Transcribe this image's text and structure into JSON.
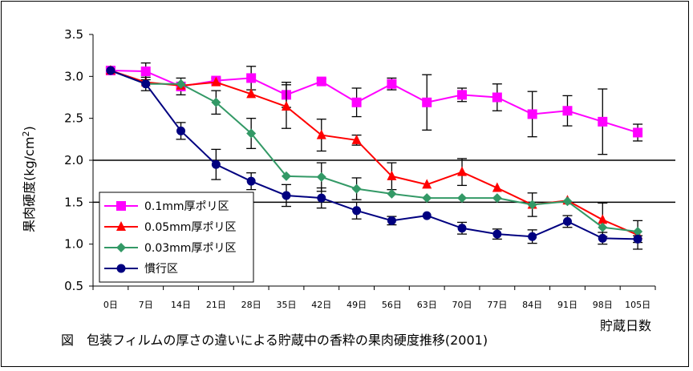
{
  "chart_data": {
    "type": "line",
    "title": "",
    "caption": "図　包装フィルムの厚さの違いによる貯蔵中の香粋の果肉硬度推移(2001)",
    "xlabel": "貯蔵日数",
    "ylabel": "果肉硬度(kg/cm²)",
    "ylabel_parts": {
      "main": "果肉硬度(kg/cm",
      "sup": "2",
      "close": ")"
    },
    "ylim": [
      0.5,
      3.5
    ],
    "yticks": [
      "0.5",
      "1.0",
      "1.5",
      "2.0",
      "2.5",
      "3.0",
      "3.5"
    ],
    "categories": [
      "0日",
      "7日",
      "14日",
      "21日",
      "28日",
      "35日",
      "42日",
      "49日",
      "56日",
      "63日",
      "70日",
      "77日",
      "84日",
      "91日",
      "98日",
      "105日"
    ],
    "reference_lines": [
      2.0,
      1.5
    ],
    "grid": false,
    "legend_position": "lower-left",
    "series": [
      {
        "name": "0.1mm厚ポリ区",
        "color": "#ff00ff",
        "marker": "square",
        "values": [
          3.07,
          3.06,
          2.88,
          2.95,
          2.98,
          2.78,
          2.94,
          2.69,
          2.91,
          2.69,
          2.78,
          2.75,
          2.55,
          2.59,
          2.46,
          2.33
        ],
        "errors": [
          0.03,
          0.1,
          0.1,
          0.03,
          0.14,
          0.15,
          0.03,
          0.17,
          0.07,
          0.33,
          0.08,
          0.16,
          0.27,
          0.18,
          0.39,
          0.1
        ]
      },
      {
        "name": "0.05mm厚ポリ区",
        "color": "#ff0000",
        "marker": "triangle",
        "values": [
          3.07,
          2.93,
          2.89,
          2.93,
          2.79,
          2.64,
          2.3,
          2.24,
          1.81,
          1.71,
          1.86,
          1.67,
          1.47,
          1.52,
          1.29,
          1.11
        ],
        "errors": [
          0.0,
          0.0,
          0.0,
          0.0,
          0.0,
          0.26,
          0.19,
          0.06,
          0.16,
          0.0,
          0.16,
          0.0,
          0.0,
          0.0,
          0.2,
          0.17
        ]
      },
      {
        "name": "0.03mm厚ポリ区",
        "color": "#339966",
        "marker": "diamond",
        "values": [
          3.07,
          2.91,
          2.91,
          2.69,
          2.32,
          1.81,
          1.8,
          1.66,
          1.6,
          1.55,
          1.55,
          1.55,
          1.47,
          1.51,
          1.2,
          1.15
        ],
        "errors": [
          0.0,
          0.0,
          0.0,
          0.14,
          0.18,
          0.0,
          0.17,
          0.13,
          0.0,
          0.0,
          0.0,
          0.0,
          0.14,
          0.0,
          0.0,
          0.0
        ]
      },
      {
        "name": "慣行区",
        "color": "#000080",
        "marker": "circle",
        "values": [
          3.07,
          2.91,
          2.35,
          1.95,
          1.75,
          1.58,
          1.55,
          1.4,
          1.28,
          1.34,
          1.19,
          1.12,
          1.09,
          1.27,
          1.07,
          1.06
        ],
        "errors": [
          0.0,
          0.08,
          0.1,
          0.18,
          0.1,
          0.13,
          0.12,
          0.1,
          0.05,
          0.0,
          0.07,
          0.06,
          0.08,
          0.07,
          0.07,
          0.04
        ]
      }
    ]
  }
}
